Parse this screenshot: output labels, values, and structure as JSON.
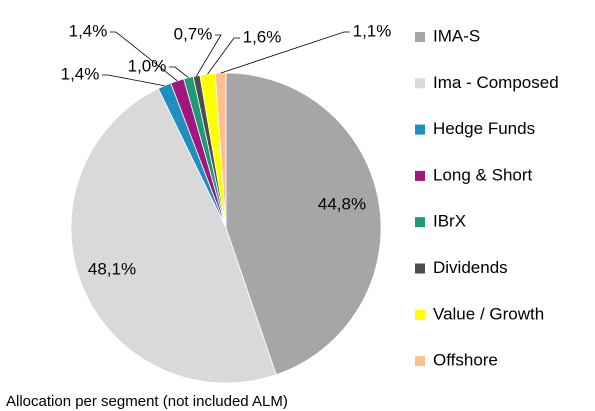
{
  "chart_data": {
    "type": "pie",
    "title": "Allocation per segment (not included ALM)",
    "categories": [
      "IMA-S",
      "Ima - Composed",
      "Hedge Funds",
      "Long & Short",
      "IBrX",
      "Dividends",
      "Value / Growth",
      "Offshore"
    ],
    "values": [
      44.8,
      48.1,
      1.4,
      1.4,
      1.0,
      0.7,
      1.6,
      1.1
    ],
    "value_labels": [
      "44,8%",
      "48,1%",
      "1,4%",
      "1,4%",
      "1,0%",
      "0,7%",
      "1,6%",
      "1,1%"
    ],
    "colors": [
      "#a6a6a6",
      "#d9d9d9",
      "#1f8fbf",
      "#a0177f",
      "#1e9a78",
      "#4d4d4d",
      "#ffff00",
      "#fac090"
    ],
    "legend": "right"
  }
}
